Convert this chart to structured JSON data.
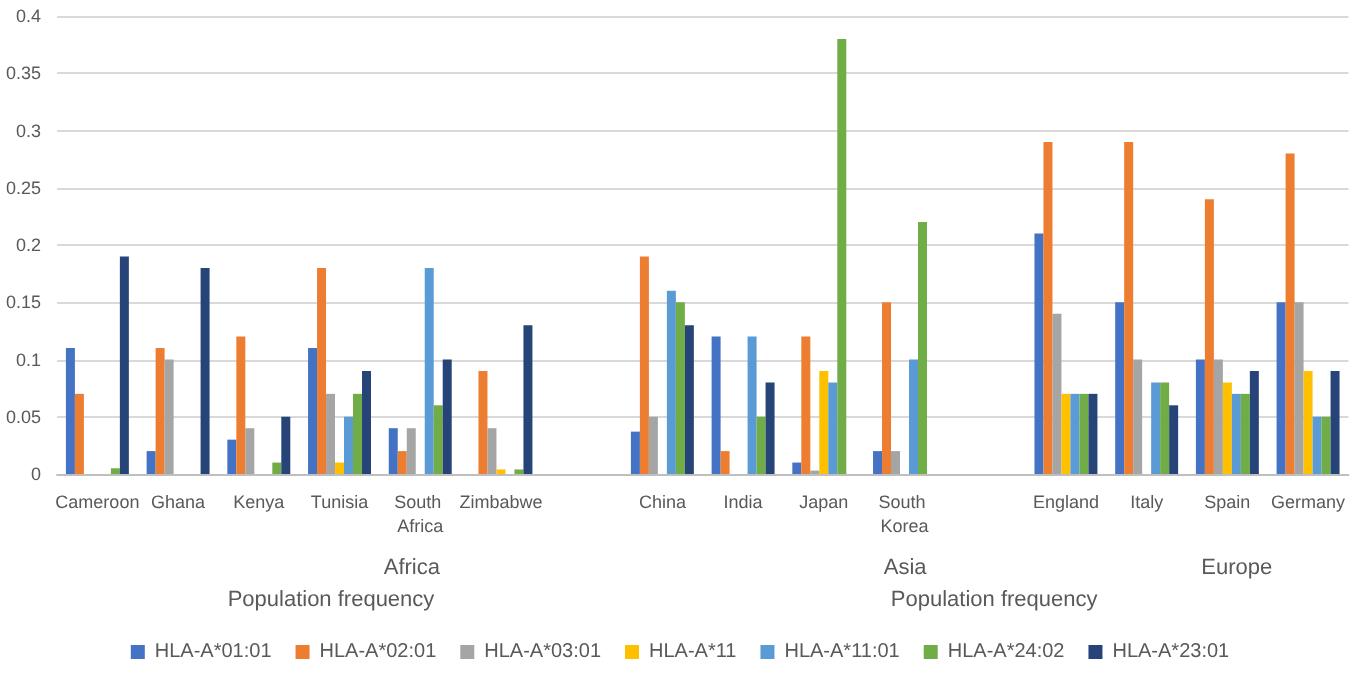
{
  "chart_data": {
    "type": "bar",
    "categories": [
      "Cameroon",
      "Ghana",
      "Kenya",
      "Tunisia",
      "South Africa",
      "Zimbabwe",
      null,
      "China",
      "India",
      "Japan",
      "South Korea",
      null,
      "England",
      "Italy",
      "Spain",
      "Germany"
    ],
    "series": [
      {
        "name": "HLA-A*01:01",
        "color": "#4472c4",
        "values": [
          0.11,
          0.02,
          0.03,
          0.11,
          0.04,
          null,
          null,
          0.037,
          0.12,
          0.01,
          0.02,
          null,
          0.21,
          0.15,
          0.1,
          0.15
        ]
      },
      {
        "name": "HLA-A*02:01",
        "color": "#ed7d31",
        "values": [
          0.07,
          0.11,
          0.12,
          0.18,
          0.02,
          0.09,
          null,
          0.19,
          0.02,
          0.12,
          0.15,
          null,
          0.29,
          0.29,
          0.24,
          0.28
        ]
      },
      {
        "name": "HLA-A*03:01",
        "color": "#a5a5a5",
        "values": [
          null,
          0.1,
          0.04,
          0.07,
          0.04,
          0.04,
          null,
          0.05,
          null,
          0.003,
          0.02,
          null,
          0.14,
          0.1,
          0.1,
          0.15
        ]
      },
      {
        "name": "HLA-A*11",
        "color": "#ffc000",
        "values": [
          null,
          null,
          null,
          0.01,
          null,
          0.004,
          null,
          null,
          null,
          0.09,
          null,
          null,
          0.07,
          null,
          0.08,
          0.09
        ]
      },
      {
        "name": "HLA-A*11:01",
        "color": "#5b9bd5",
        "values": [
          null,
          null,
          null,
          0.05,
          0.18,
          null,
          null,
          0.16,
          0.12,
          0.08,
          0.1,
          null,
          0.07,
          0.08,
          0.07,
          0.05
        ]
      },
      {
        "name": "HLA-A*24:02",
        "color": "#70ad47",
        "values": [
          0.005,
          null,
          0.01,
          0.07,
          0.06,
          0.004,
          null,
          0.15,
          0.05,
          0.38,
          0.22,
          null,
          0.07,
          0.08,
          0.07,
          0.05
        ]
      },
      {
        "name": "HLA-A*23:01",
        "color": "#264478",
        "values": [
          0.19,
          0.18,
          0.05,
          0.09,
          0.1,
          0.13,
          null,
          0.13,
          0.08,
          null,
          null,
          null,
          0.07,
          0.06,
          0.09,
          0.09
        ]
      }
    ],
    "ylim": [
      0,
      0.4
    ],
    "yticks": [
      0,
      0.05,
      0.1,
      0.15,
      0.2,
      0.25,
      0.3,
      0.35,
      0.4
    ],
    "grid": "y",
    "legend": "bottom",
    "annotations": [
      "Africa",
      "Asia",
      "Europe",
      "Population frequency",
      "Population frequency"
    ]
  }
}
